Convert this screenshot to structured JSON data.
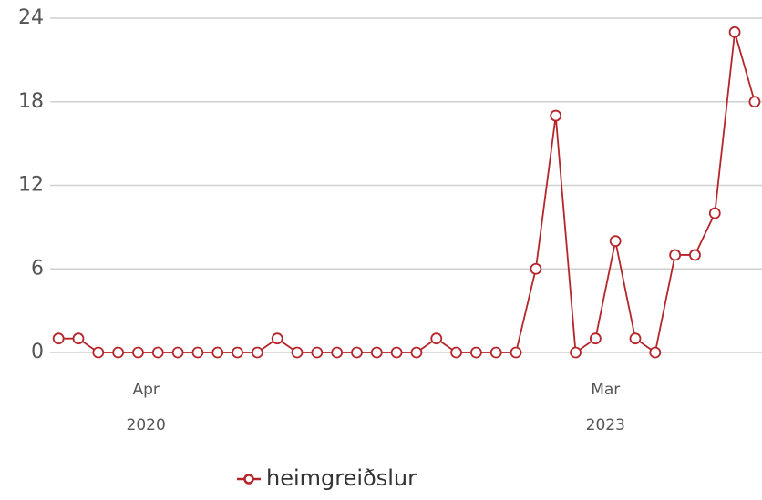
{
  "chart_data": {
    "type": "line",
    "x": [
      0,
      1,
      2,
      3,
      4,
      5,
      6,
      7,
      8,
      9,
      10,
      11,
      12,
      13,
      14,
      15,
      16,
      17,
      18,
      19,
      20,
      21,
      22,
      23,
      24,
      25,
      26,
      27,
      28,
      29,
      30,
      31,
      32,
      33,
      34,
      35
    ],
    "series": [
      {
        "name": "heimgreiðslur",
        "color": "#b5262b",
        "values": [
          1,
          1,
          0,
          0,
          0,
          0,
          0,
          0,
          0,
          0,
          0,
          1,
          0,
          0,
          0,
          0,
          0,
          0,
          0,
          1,
          0,
          0,
          0,
          0,
          6,
          17,
          0,
          1,
          8,
          1,
          0,
          7,
          7,
          10,
          23,
          18
        ]
      }
    ],
    "xlim": [
      -0.42,
      35.37
    ],
    "xticks": [
      {
        "value": 4.4,
        "label": "Apr"
      },
      {
        "value": 27.5,
        "label": "Mar"
      }
    ],
    "xtick_years": [
      {
        "value": 4.4,
        "label": "2020"
      },
      {
        "value": 27.5,
        "label": "2023"
      }
    ],
    "ylim": [
      0,
      24
    ],
    "yticks": [
      0,
      6,
      12,
      18,
      24
    ],
    "grid": true,
    "legend": "bottom"
  }
}
